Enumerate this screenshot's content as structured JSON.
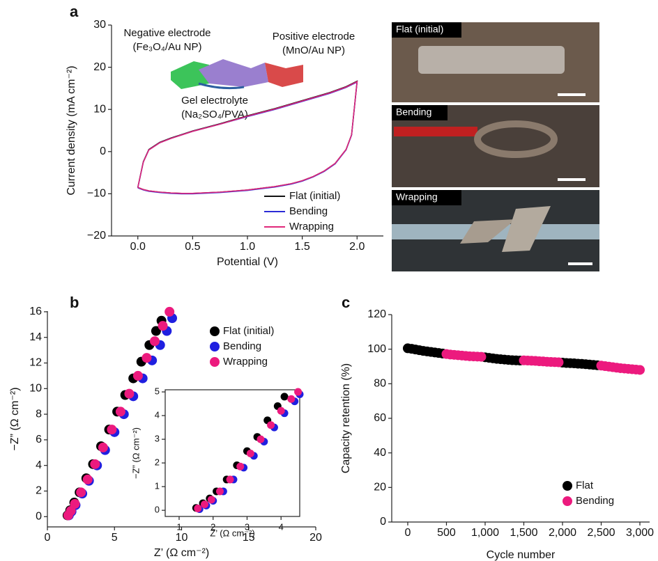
{
  "chart_data": [
    {
      "type": "line",
      "panel_label": "a",
      "x_label": "Potential (V)",
      "y_label": "Current density (mA cm⁻²)",
      "xlim": [
        -0.24,
        2.24
      ],
      "ylim": [
        -20,
        30
      ],
      "xticks": [
        {
          "value": 0,
          "label": "0.0"
        },
        0.5,
        {
          "value": 1,
          "label": "1.0"
        },
        1.5,
        {
          "value": 2,
          "label": "2.0"
        }
      ],
      "yticks": [
        {
          "value": -20,
          "label": "−20"
        },
        {
          "value": -10,
          "label": "−10"
        },
        0,
        10,
        20,
        30
      ],
      "legend": "lower right",
      "annotations": [
        "Negative electrode",
        "(Fe₃O₄/Au NP)",
        "Positive electrode",
        "(MnO/Au NP)",
        "Gel electrolyte",
        "(Na₂SO₄/PVA)"
      ],
      "x": [
        0,
        0.05,
        0.1,
        0.2,
        0.3,
        0.4,
        0.5,
        0.75,
        1.0,
        1.25,
        1.4,
        1.5,
        1.6,
        1.7,
        1.8,
        1.9,
        1.95,
        2.0,
        1.9,
        1.75,
        1.5,
        1.25,
        1.0,
        0.75,
        0.5,
        0.3,
        0.2,
        0.1,
        0.05,
        0
      ],
      "series": [
        {
          "name": "Flat (initial)",
          "color": "#111111",
          "values": [
            -8.5,
            -9.0,
            -9.3,
            -9.6,
            -9.8,
            -9.9,
            -9.9,
            -9.6,
            -9.1,
            -8.3,
            -7.6,
            -6.9,
            -5.9,
            -4.6,
            -2.8,
            0.5,
            4.0,
            16.7,
            15.4,
            14.0,
            12.1,
            10.2,
            8.5,
            6.6,
            4.9,
            3.2,
            2.2,
            0.5,
            -2.4,
            -8.5
          ]
        },
        {
          "name": "Bending",
          "color": "#2b2bd6",
          "values": [
            -8.6,
            -9.1,
            -9.4,
            -9.7,
            -9.9,
            -10.0,
            -10.0,
            -9.7,
            -9.2,
            -8.4,
            -7.7,
            -7.0,
            -6.0,
            -4.7,
            -2.9,
            0.4,
            3.9,
            16.5,
            15.2,
            13.8,
            11.9,
            10.0,
            8.3,
            6.5,
            4.8,
            3.1,
            2.1,
            0.4,
            -2.5,
            -8.6
          ]
        },
        {
          "name": "Wrapping",
          "color": "#e0287a",
          "values": [
            -8.5,
            -9.0,
            -9.3,
            -9.6,
            -9.8,
            -9.9,
            -9.9,
            -9.6,
            -9.1,
            -8.3,
            -7.6,
            -6.9,
            -5.9,
            -4.6,
            -2.8,
            0.5,
            4.0,
            16.6,
            15.3,
            13.9,
            12.0,
            10.1,
            8.4,
            6.5,
            4.8,
            3.1,
            2.1,
            0.4,
            -2.5,
            -8.5
          ]
        }
      ]
    },
    {
      "type": "scatter",
      "panel_label": "b",
      "x_label": "Z’ (Ω cm⁻²)",
      "y_label": "−Z” (Ω cm⁻²)",
      "xlim": [
        0,
        20
      ],
      "ylim": [
        -0.8,
        16.05
      ],
      "xticks": [
        0,
        5,
        10,
        15,
        20
      ],
      "yticks": [
        0,
        2,
        4,
        6,
        8,
        10,
        12,
        14,
        16
      ],
      "legend": "upper right",
      "series": [
        {
          "name": "Flat (initial)",
          "color": "#000000",
          "x": [
            1.5,
            1.7,
            2.0,
            2.4,
            2.9,
            3.4,
            4.0,
            4.6,
            5.2,
            5.8,
            6.4,
            7.0,
            7.6,
            8.1,
            8.5
          ],
          "values": [
            0.1,
            0.5,
            1.1,
            1.9,
            3.0,
            4.1,
            5.5,
            6.8,
            8.2,
            9.5,
            10.8,
            12.1,
            13.4,
            14.5,
            15.3
          ]
        },
        {
          "name": "Bending",
          "color": "#1f1fe0",
          "x": [
            1.6,
            1.8,
            2.1,
            2.6,
            3.1,
            3.7,
            4.3,
            5.0,
            5.7,
            6.4,
            7.1,
            7.8,
            8.4,
            8.9,
            9.3
          ],
          "values": [
            0.1,
            0.4,
            0.9,
            1.8,
            2.8,
            4.0,
            5.2,
            6.6,
            8.0,
            9.4,
            10.8,
            12.2,
            13.4,
            14.5,
            15.5
          ]
        },
        {
          "name": "Wrapping",
          "color": "#ec1a7e",
          "x": [
            1.55,
            1.75,
            2.05,
            2.5,
            3.0,
            3.55,
            4.15,
            4.8,
            5.45,
            6.1,
            6.75,
            7.4,
            8.0,
            8.6,
            9.1
          ],
          "values": [
            0.1,
            0.45,
            1.0,
            1.9,
            2.9,
            4.1,
            5.4,
            6.8,
            8.2,
            9.6,
            11.0,
            12.4,
            13.7,
            14.9,
            16.0
          ]
        }
      ]
    },
    {
      "type": "scatter",
      "x_label": "Z’ (Ω cm⁻²)",
      "y_label": "−Z” (Ω cm⁻²)",
      "frame": true,
      "xlim": [
        0.59,
        4.55
      ],
      "ylim": [
        -0.26,
        5.09
      ],
      "xticks": [
        1,
        2,
        3,
        4
      ],
      "yticks": [
        0,
        1,
        2,
        3,
        4,
        5
      ],
      "series": [
        {
          "color": "#000000",
          "x": [
            1.5,
            1.7,
            1.9,
            2.1,
            2.4,
            2.7,
            3.0,
            3.3,
            3.6,
            3.9,
            4.1
          ],
          "values": [
            0.1,
            0.3,
            0.5,
            0.8,
            1.3,
            1.9,
            2.5,
            3.1,
            3.8,
            4.4,
            4.8
          ]
        },
        {
          "color": "#1f1fe0",
          "x": [
            1.6,
            1.8,
            2.0,
            2.3,
            2.6,
            2.9,
            3.2,
            3.5,
            3.8,
            4.1,
            4.4,
            4.55
          ],
          "values": [
            0.05,
            0.2,
            0.4,
            0.8,
            1.3,
            1.8,
            2.3,
            2.9,
            3.5,
            4.1,
            4.6,
            4.9
          ]
        },
        {
          "color": "#ec1a7e",
          "x": [
            1.55,
            1.75,
            1.95,
            2.2,
            2.5,
            2.8,
            3.1,
            3.4,
            3.7,
            4.0,
            4.3,
            4.5
          ],
          "values": [
            0.08,
            0.25,
            0.45,
            0.8,
            1.3,
            1.85,
            2.4,
            3.0,
            3.6,
            4.2,
            4.7,
            5.0
          ]
        }
      ]
    },
    {
      "type": "scatter",
      "panel_label": "c",
      "x_label": "Cycle number",
      "y_label": "Capacity retention (%)",
      "xlim": [
        -207,
        3126
      ],
      "ylim": [
        0,
        120
      ],
      "xticks": [
        0,
        500,
        {
          "value": 1000,
          "label": "1,000"
        },
        {
          "value": 1500,
          "label": "1,500"
        },
        {
          "value": 2000,
          "label": "2,000"
        },
        {
          "value": 2500,
          "label": "2,500"
        },
        {
          "value": 3000,
          "label": "3,000"
        }
      ],
      "yticks": [
        0,
        20,
        40,
        60,
        80,
        100,
        120
      ],
      "legend": "lower right",
      "series": [
        {
          "name": "Flat",
          "color": "#000000",
          "x": [
            0,
            50,
            100,
            150,
            200,
            250,
            300,
            350,
            400,
            450,
            1000,
            1050,
            1100,
            1150,
            1200,
            1250,
            1300,
            1350,
            1400,
            1450,
            2000,
            2050,
            2100,
            2150,
            2200,
            2250,
            2300,
            2350,
            2400,
            2450
          ],
          "values": [
            100.5,
            100.2,
            99.8,
            99.4,
            99.0,
            98.7,
            98.4,
            98.1,
            97.8,
            97.5,
            95.3,
            95.0,
            94.7,
            94.4,
            94.2,
            94.0,
            93.8,
            93.6,
            93.5,
            93.4,
            92.2,
            92.0,
            91.9,
            91.8,
            91.6,
            91.5,
            91.3,
            91.1,
            90.9,
            90.7
          ]
        },
        {
          "name": "Bending",
          "color": "#ec1a7e",
          "x": [
            500,
            550,
            600,
            650,
            700,
            750,
            800,
            850,
            900,
            950,
            1500,
            1550,
            1600,
            1650,
            1700,
            1750,
            1800,
            1850,
            1900,
            1950,
            2500,
            2550,
            2600,
            2650,
            2700,
            2750,
            2800,
            2850,
            2900,
            2950,
            3000
          ],
          "values": [
            97.2,
            96.9,
            96.7,
            96.5,
            96.3,
            96.1,
            95.9,
            95.8,
            95.7,
            95.6,
            93.5,
            93.4,
            93.3,
            93.2,
            93.0,
            92.9,
            92.7,
            92.6,
            92.5,
            92.4,
            90.5,
            90.2,
            89.9,
            89.6,
            89.3,
            89.0,
            88.8,
            88.6,
            88.4,
            88.2,
            88.0
          ]
        }
      ]
    }
  ],
  "photos": {
    "labels": [
      "Flat (initial)",
      "Bending",
      "Wrapping"
    ]
  }
}
